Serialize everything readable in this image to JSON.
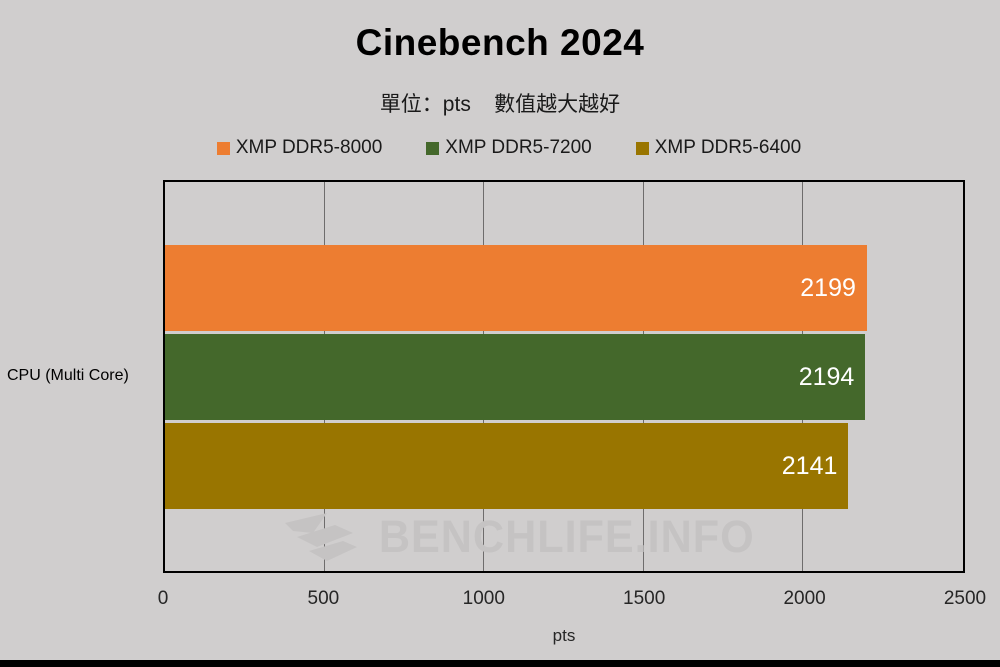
{
  "page": {
    "background_color": "#d0cece",
    "footer_bar_color": "#000000"
  },
  "header": {
    "title": "Cinebench 2024",
    "subtitle": "單位：pts    數值越大越好"
  },
  "watermark": {
    "logo_icon": "benchlife-paper-plane-icon",
    "text": "BENCHLIFE.INFO",
    "color": "#c5c3c3"
  },
  "chart_data": {
    "type": "bar",
    "orientation": "horizontal",
    "title": "Cinebench 2024",
    "categories": [
      "CPU (Multi  Core)"
    ],
    "series": [
      {
        "name": "XMP DDR5-8000",
        "color": "#ed7d31",
        "values": [
          2199
        ]
      },
      {
        "name": "XMP DDR5-7200",
        "color": "#44682b",
        "values": [
          2194
        ]
      },
      {
        "name": "XMP DDR5-6400",
        "color": "#997500",
        "values": [
          2141
        ]
      }
    ],
    "value_labels": "inside-end",
    "value_label_color": "#ffffff",
    "xlabel": "pts",
    "xlim": [
      0,
      2500
    ],
    "xticks": [
      0,
      500,
      1000,
      1500,
      2000,
      2500
    ],
    "grid": true,
    "gridline_color": "#6e6c6c",
    "legend_position": "top"
  }
}
